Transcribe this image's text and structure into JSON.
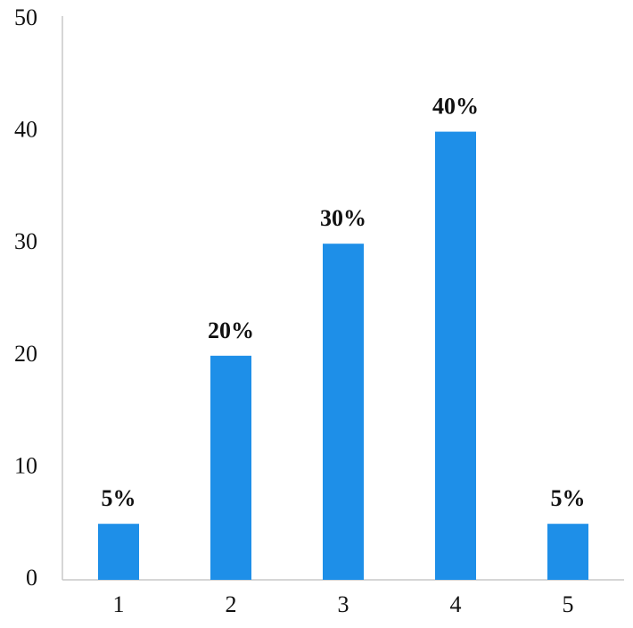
{
  "chart_data": {
    "type": "bar",
    "categories": [
      "1",
      "2",
      "3",
      "4",
      "5"
    ],
    "values": [
      5,
      20,
      30,
      40,
      5
    ],
    "value_labels": [
      "5%",
      "20%",
      "30%",
      "40%",
      "5%"
    ],
    "color": "#1e8fe8",
    "ylim": [
      0,
      50
    ],
    "yticks": [
      0,
      10,
      20,
      30,
      40,
      50
    ],
    "grid": false
  }
}
